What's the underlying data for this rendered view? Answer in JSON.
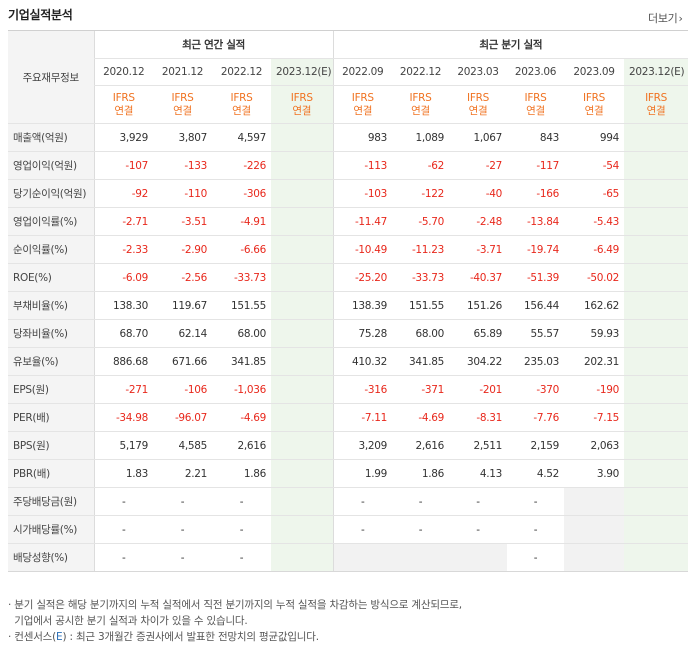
{
  "section_title": "기업실적분석",
  "more_label": "더보기",
  "header": {
    "item_label": "주요재무정보",
    "annual_group": "최근 연간 실적",
    "quarter_group": "최근 분기 실적",
    "annual_periods": [
      "2020.12",
      "2021.12",
      "2022.12",
      "2023.12(E)"
    ],
    "quarter_periods": [
      "2022.09",
      "2022.12",
      "2023.03",
      "2023.06",
      "2023.09",
      "2023.12(E)"
    ],
    "ifrs_line1": "IFRS",
    "ifrs_line2": "연결"
  },
  "rows": [
    {
      "label": "매출액(억원)",
      "annual": [
        "3,929",
        "3,807",
        "4,597",
        ""
      ],
      "quarter": [
        "983",
        "1,089",
        "1,067",
        "843",
        "994",
        ""
      ]
    },
    {
      "label": "영업이익(억원)",
      "annual": [
        "-107",
        "-133",
        "-226",
        ""
      ],
      "quarter": [
        "-113",
        "-62",
        "-27",
        "-117",
        "-54",
        ""
      ]
    },
    {
      "label": "당기순이익(억원)",
      "annual": [
        "-92",
        "-110",
        "-306",
        ""
      ],
      "quarter": [
        "-103",
        "-122",
        "-40",
        "-166",
        "-65",
        ""
      ]
    },
    {
      "label": "영업이익률(%)",
      "annual": [
        "-2.71",
        "-3.51",
        "-4.91",
        ""
      ],
      "quarter": [
        "-11.47",
        "-5.70",
        "-2.48",
        "-13.84",
        "-5.43",
        ""
      ]
    },
    {
      "label": "순이익률(%)",
      "annual": [
        "-2.33",
        "-2.90",
        "-6.66",
        ""
      ],
      "quarter": [
        "-10.49",
        "-11.23",
        "-3.71",
        "-19.74",
        "-6.49",
        ""
      ]
    },
    {
      "label": "ROE(%)",
      "annual": [
        "-6.09",
        "-2.56",
        "-33.73",
        ""
      ],
      "quarter": [
        "-25.20",
        "-33.73",
        "-40.37",
        "-51.39",
        "-50.02",
        ""
      ]
    },
    {
      "label": "부채비율(%)",
      "annual": [
        "138.30",
        "119.67",
        "151.55",
        ""
      ],
      "quarter": [
        "138.39",
        "151.55",
        "151.26",
        "156.44",
        "162.62",
        ""
      ]
    },
    {
      "label": "당좌비율(%)",
      "annual": [
        "68.70",
        "62.14",
        "68.00",
        ""
      ],
      "quarter": [
        "75.28",
        "68.00",
        "65.89",
        "55.57",
        "59.93",
        ""
      ]
    },
    {
      "label": "유보율(%)",
      "annual": [
        "886.68",
        "671.66",
        "341.85",
        ""
      ],
      "quarter": [
        "410.32",
        "341.85",
        "304.22",
        "235.03",
        "202.31",
        ""
      ]
    },
    {
      "label": "EPS(원)",
      "annual": [
        "-271",
        "-106",
        "-1,036",
        ""
      ],
      "quarter": [
        "-316",
        "-371",
        "-201",
        "-370",
        "-190",
        ""
      ]
    },
    {
      "label": "PER(배)",
      "annual": [
        "-34.98",
        "-96.07",
        "-4.69",
        ""
      ],
      "quarter": [
        "-7.11",
        "-4.69",
        "-8.31",
        "-7.76",
        "-7.15",
        ""
      ]
    },
    {
      "label": "BPS(원)",
      "annual": [
        "5,179",
        "4,585",
        "2,616",
        ""
      ],
      "quarter": [
        "3,209",
        "2,616",
        "2,511",
        "2,159",
        "2,063",
        ""
      ]
    },
    {
      "label": "PBR(배)",
      "annual": [
        "1.83",
        "2.21",
        "1.86",
        ""
      ],
      "quarter": [
        "1.99",
        "1.86",
        "4.13",
        "4.52",
        "3.90",
        ""
      ]
    },
    {
      "label": "주당배당금(원)",
      "annual": [
        "-",
        "-",
        "-",
        ""
      ],
      "quarter": [
        "-",
        "-",
        "-",
        "-",
        "",
        ""
      ]
    },
    {
      "label": "시가배당률(%)",
      "annual": [
        "-",
        "-",
        "-",
        ""
      ],
      "quarter": [
        "-",
        "-",
        "-",
        "-",
        "",
        ""
      ]
    },
    {
      "label": "배당성향(%)",
      "annual": [
        "-",
        "-",
        "-",
        ""
      ],
      "quarter": [
        "",
        "",
        "",
        "-",
        "",
        ""
      ]
    }
  ],
  "notes": {
    "line1": "· 분기 실적은 해당 분기까지의 누적 실적에서 직전 분기까지의 누적 실적을 차감하는 방식으로 계산되므로,",
    "line2": "  기업에서 공시한 분기 실적과 차이가 있을 수 있습니다.",
    "line3_prefix": "· 컨센서스(",
    "line3_e": "E",
    "line3_suffix": ") : 최근 3개월간 증권사에서 발표한 전망치의 평균값입니다."
  },
  "colors": {
    "negative": "#e8281c",
    "ifrs": "#f07322",
    "estimate_bg": "#eef6ec",
    "label_bg": "#f4f4f4"
  }
}
